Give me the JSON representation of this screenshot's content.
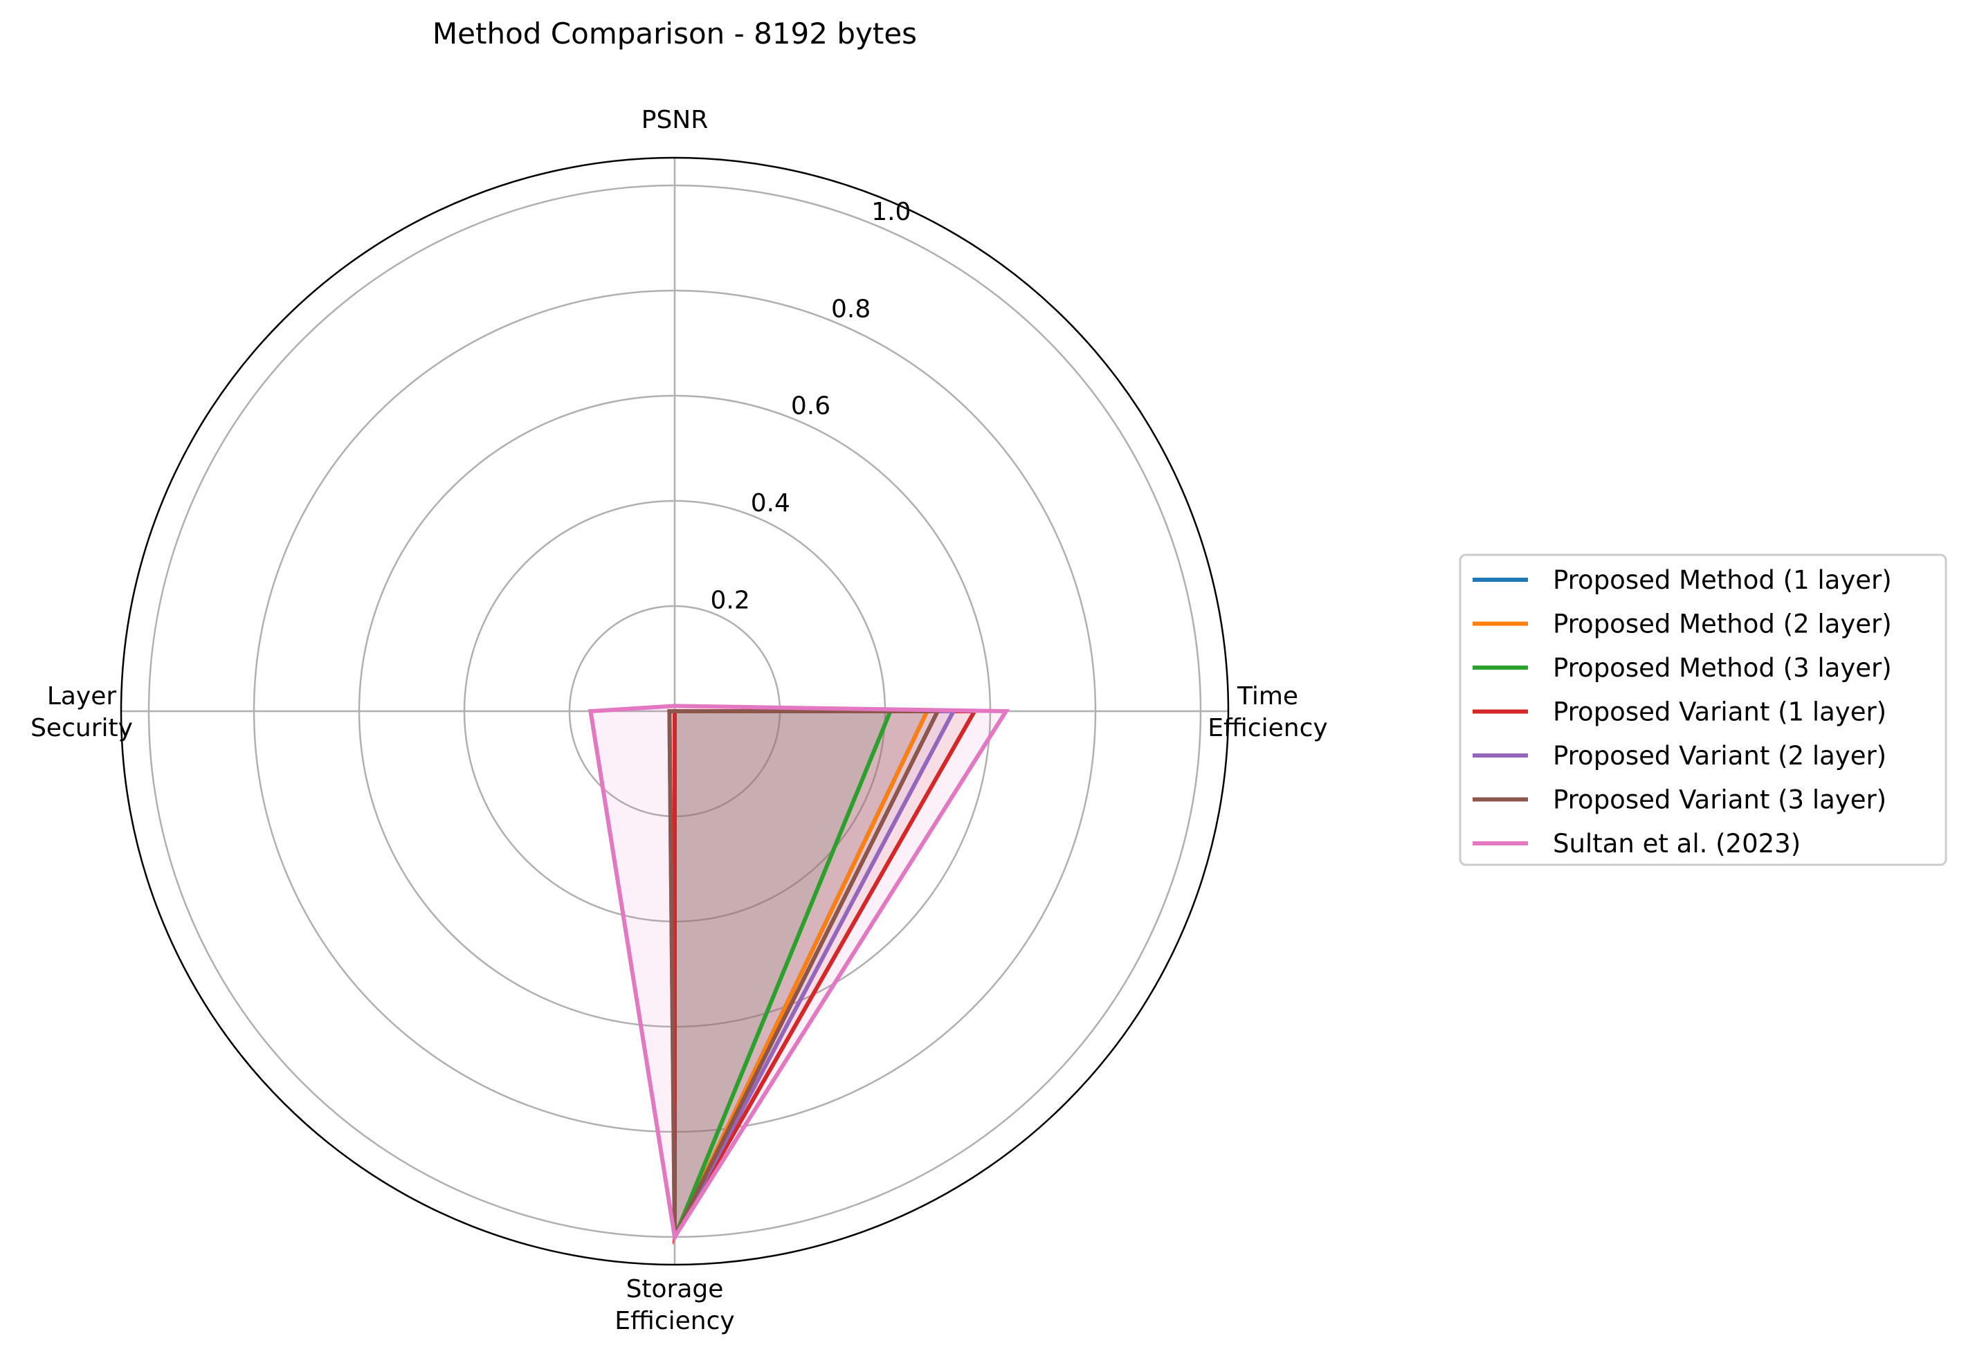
{
  "chart_data": {
    "type": "radar",
    "title": "Method Comparison - 8192 bytes",
    "axes": [
      "PSNR",
      "Time\nEfficiency",
      "Storage\nEfficiency",
      "Layer\nSecurity"
    ],
    "radial_ticks": [
      "0.2",
      "0.4",
      "0.6",
      "0.8",
      "1.0"
    ],
    "radial_tick_values": [
      0.2,
      0.4,
      0.6,
      0.8,
      1.0
    ],
    "rlim": [
      0,
      1.0
    ],
    "grid": true,
    "legend_position": "right",
    "series": [
      {
        "name": "Proposed Method (1 layer)",
        "color": "#1f77b4",
        "values": [
          0.0,
          0.48,
          1.0,
          0.0
        ]
      },
      {
        "name": "Proposed Method (2 layer)",
        "color": "#ff7f0e",
        "values": [
          0.0,
          0.48,
          1.0,
          0.0
        ]
      },
      {
        "name": "Proposed Method (3 layer)",
        "color": "#2ca02c",
        "values": [
          0.0,
          0.41,
          1.0,
          0.0
        ]
      },
      {
        "name": "Proposed Variant (1 layer)",
        "color": "#d62728",
        "values": [
          0.0,
          0.57,
          1.0,
          0.0
        ]
      },
      {
        "name": "Proposed Variant (2 layer)",
        "color": "#9467bd",
        "values": [
          0.0,
          0.53,
          1.0,
          0.01
        ]
      },
      {
        "name": "Proposed Variant (3 layer)",
        "color": "#8c564b",
        "values": [
          0.0,
          0.5,
          1.0,
          0.01
        ]
      },
      {
        "name": "Sultan et al. (2023)",
        "color": "#e377c2",
        "values": [
          0.01,
          0.63,
          1.0,
          0.16
        ]
      }
    ]
  }
}
